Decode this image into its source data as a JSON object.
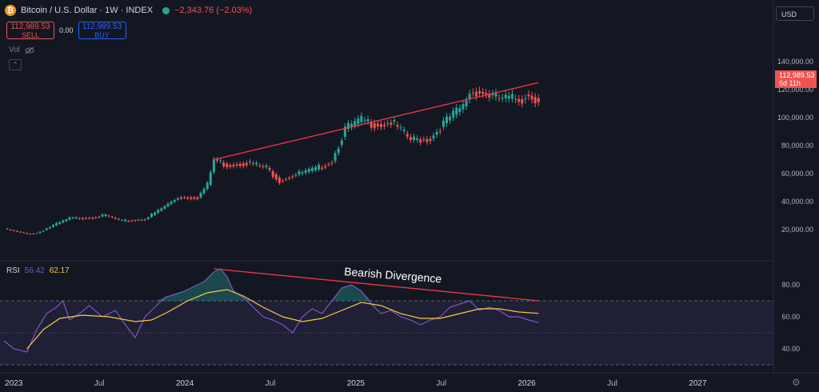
{
  "header": {
    "coin_glyph": "₿",
    "title": "Bitcoin / U.S. Dollar · 1W · INDEX",
    "change": "−2,343.76 (−2.03%)"
  },
  "trade": {
    "sell_price": "112,989.53",
    "sell_label": "SELL",
    "spread": "0.00",
    "buy_price": "112,989.53",
    "buy_label": "BUY"
  },
  "volume_label": "Vol",
  "collapse_glyph": "^",
  "currency_label": "USD",
  "last_price": {
    "value": "112,989.53",
    "countdown": "6d 11h"
  },
  "annotation": "Bearish Divergence",
  "rsi_header": {
    "label": "RSI",
    "rsi_value": "56.42",
    "ma_value": "62.17"
  },
  "settings_icon": "gear-icon",
  "colors": {
    "background": "#131722",
    "up": "#26a69a",
    "down": "#ef5350",
    "rsi": "#7e57c2",
    "rsi_ma": "#f7c948",
    "trendline": "#f23645"
  },
  "chart_data": [
    {
      "type": "candlestick",
      "title": "Bitcoin / U.S. Dollar · 1W · INDEX",
      "xlabel": "",
      "ylabel": "",
      "ylim": [
        0,
        150000
      ],
      "x_ticks": [
        "2023",
        "Jul",
        "2024",
        "Jul",
        "2025",
        "Jul",
        "2026",
        "Jul",
        "2027"
      ],
      "x_tick_dates": [
        "2023-01",
        "2023-07",
        "2024-01",
        "2024-07",
        "2025-01",
        "2025-07",
        "2026-01",
        "2026-07",
        "2027-01"
      ],
      "y_ticks": [
        "20,000.00",
        "40,000.00",
        "60,000.00",
        "80,000.00",
        "100,000.00",
        "120,000.00",
        "140,000.00"
      ],
      "y_tick_values": [
        20000,
        40000,
        60000,
        80000,
        100000,
        120000,
        140000
      ],
      "grid": false,
      "price_path": {
        "weeks_from_start": [
          0,
          7,
          10,
          15,
          20,
          26,
          31,
          36,
          43,
          48,
          53,
          59,
          62,
          64,
          68,
          74,
          80,
          84,
          87,
          90,
          95,
          100,
          104,
          109,
          112,
          115,
          118,
          124,
          130,
          134,
          138,
          140,
          142,
          144,
          147,
          150,
          158,
          159,
          163
        ],
        "close": [
          20500,
          17000,
          17500,
          23000,
          28000,
          28500,
          30000,
          26000,
          27500,
          35000,
          43000,
          43000,
          52000,
          70000,
          66000,
          68000,
          64000,
          55000,
          58000,
          60000,
          63000,
          69000,
          92000,
          98000,
          96000,
          95000,
          97000,
          84000,
          85000,
          96000,
          104000,
          108000,
          118000,
          119000,
          117000,
          114000,
          113000,
          116500,
          113000
        ]
      },
      "trendline": {
        "from_week": 64,
        "from_price": 70000,
        "to_week": 163,
        "to_price": 125000
      }
    },
    {
      "type": "line",
      "title": "RSI",
      "ylim": [
        30,
        90
      ],
      "y_ticks": [
        "40.00",
        "60.00",
        "80.00"
      ],
      "y_tick_values": [
        40,
        60,
        80
      ],
      "levels": [
        30,
        70
      ],
      "series": [
        {
          "name": "RSI",
          "weeks_from_start": [
            0,
            3,
            7,
            10,
            13,
            16,
            18,
            20,
            23,
            26,
            30,
            34,
            37,
            40,
            43,
            46,
            49,
            52,
            55,
            58,
            61,
            62,
            64,
            66,
            68,
            70,
            73,
            76,
            79,
            82,
            85,
            88,
            91,
            94,
            97,
            100,
            103,
            106,
            109,
            112,
            115,
            118,
            121,
            124,
            127,
            130,
            133,
            136,
            139,
            142,
            145,
            148,
            151,
            154,
            157,
            160,
            163
          ],
          "values": [
            45,
            40,
            38,
            52,
            62,
            66,
            70,
            58,
            62,
            67,
            60,
            64,
            55,
            47,
            60,
            66,
            72,
            74,
            76,
            79,
            82,
            84,
            88,
            90,
            85,
            76,
            72,
            66,
            60,
            58,
            55,
            50,
            60,
            65,
            62,
            70,
            78,
            80,
            76,
            68,
            62,
            64,
            60,
            58,
            55,
            58,
            60,
            66,
            68,
            70,
            64,
            66,
            64,
            60,
            60,
            58,
            56.42
          ]
        },
        {
          "name": "RSI-based MA",
          "weeks_from_start": [
            7,
            12,
            17,
            24,
            32,
            40,
            45,
            50,
            56,
            62,
            68,
            73,
            79,
            85,
            91,
            97,
            103,
            109,
            115,
            121,
            127,
            133,
            139,
            145,
            151,
            157,
            163
          ],
          "values": [
            40,
            52,
            59,
            61,
            60,
            57,
            58,
            63,
            70,
            75,
            77,
            73,
            66,
            60,
            57,
            59,
            64,
            69,
            67,
            62,
            59,
            59,
            62,
            65,
            65,
            63,
            62.17
          ]
        }
      ],
      "divergence_line": {
        "from_week": 64,
        "from_value": 90,
        "to_week": 163,
        "to_value": 70
      }
    }
  ]
}
